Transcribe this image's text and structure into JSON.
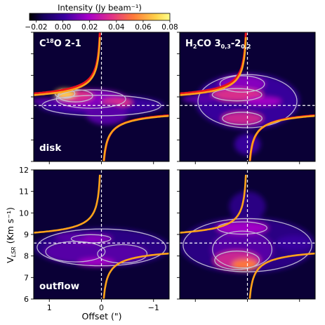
{
  "chart_data": {
    "type": "heatmap",
    "description_units": "position-velocity diagrams",
    "colorbar": {
      "label": "Intensity (Jy beam⁻¹)",
      "ticks": [
        -0.02,
        0.0,
        0.02,
        0.04,
        0.06,
        0.08
      ],
      "tick_labels": [
        "−0.02",
        "0.00",
        "0.02",
        "0.04",
        "0.06",
        "0.08"
      ],
      "range": [
        -0.025,
        0.08
      ],
      "colormap": [
        "#000000",
        "#16005c",
        "#5a00a8",
        "#a600c8",
        "#e0308a",
        "#ff7a3a",
        "#ffd24a",
        "#ffff8a"
      ]
    },
    "xlabel": "Offset (\")",
    "ylabel_main": "V",
    "ylabel_sub": "LSR",
    "ylabel_tail": " (Km s⁻¹)",
    "xlim": [
      1.3,
      -1.3
    ],
    "ylim": [
      6,
      12
    ],
    "xticks": [
      1,
      0,
      -1
    ],
    "xtick_labels": [
      "1",
      "0",
      "−1"
    ],
    "yticks": [
      6,
      7,
      8,
      9,
      10,
      11,
      12
    ],
    "ytick_labels": [
      "6",
      "7",
      "8",
      "9",
      "10",
      "11",
      "12"
    ],
    "systemic_velocity": 8.6,
    "source_offset": 0,
    "rows": [
      "disk",
      "outflow"
    ],
    "columns": [
      {
        "molecule_main": "C",
        "molecule_sup": "18",
        "molecule_rest": "O 2-1"
      },
      {
        "molecule_main": "H",
        "molecule_sub1": "2",
        "molecule_mid": "CO 3",
        "molecule_sub2": "0,3",
        "molecule_dash": "-2",
        "molecule_sub3": "0,2"
      }
    ],
    "panels": [
      {
        "row": 0,
        "col": 0,
        "title": "C18O 2-1",
        "corner_label": "",
        "curves": [
          "orange",
          "red"
        ]
      },
      {
        "row": 0,
        "col": 1,
        "title": "H2CO 3(0,3)-2(0,2)",
        "corner_label": "",
        "curves": [
          "orange",
          "red"
        ]
      },
      {
        "row": 1,
        "col": 0,
        "title": "",
        "corner_label": "outflow",
        "curves": [
          "orange"
        ]
      },
      {
        "row": 1,
        "col": 1,
        "title": "",
        "corner_label": "",
        "curves": [
          "orange"
        ]
      }
    ],
    "curve_colors": {
      "orange": "#ffa31a",
      "red": "#e8141c"
    },
    "contour_color": "#c8c8d8",
    "grid": false
  },
  "labels": {
    "disk": "disk",
    "outflow": "outflow"
  }
}
